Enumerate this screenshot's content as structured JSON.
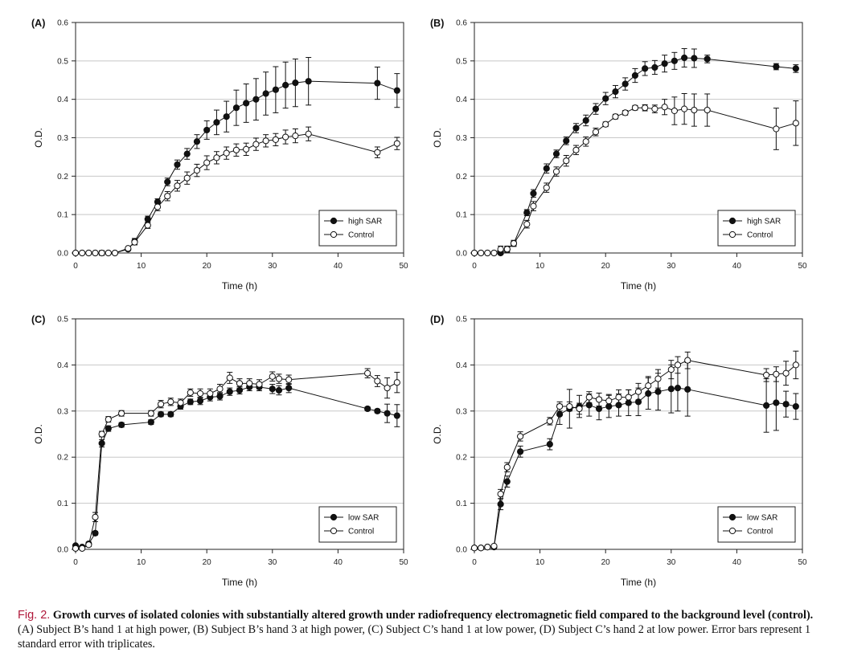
{
  "caption": {
    "label": "Fig. 2.",
    "title": "Growth curves of isolated colonies with substantially altered growth under radiofrequency electromagnetic field compared to the background level (control).",
    "text": "(A) Subject B’s hand 1 at high power, (B) Subject B’s hand 3 at high power, (C) Subject C’s hand 1 at low power, (D) Subject C’s hand 2 at low power. Error bars represent 1 standard error with triplicates."
  },
  "chart_data": [
    {
      "panel": "(A)",
      "type": "line",
      "xlabel": "Time (h)",
      "ylabel": "O.D.",
      "xlim": [
        0,
        50
      ],
      "ylim": [
        0,
        0.6
      ],
      "xticks": [
        0,
        10,
        20,
        30,
        40,
        50
      ],
      "yticks": [
        0.0,
        0.1,
        0.2,
        0.3,
        0.4,
        0.5,
        0.6
      ],
      "grid": "horizontal",
      "legend": "bottom-right",
      "series": [
        {
          "name": "high SAR",
          "marker": "filled-circle",
          "x": [
            0,
            1,
            2,
            3,
            4,
            5,
            6,
            8,
            9,
            11,
            12.5,
            14,
            15.5,
            17,
            18.5,
            20,
            21.5,
            23,
            24.5,
            26,
            27.5,
            29,
            30.5,
            32,
            33.5,
            35.5,
            46,
            49
          ],
          "y": [
            0,
            0,
            0,
            0,
            0,
            0,
            0,
            0.01,
            0.03,
            0.088,
            0.133,
            0.185,
            0.23,
            0.258,
            0.29,
            0.32,
            0.34,
            0.355,
            0.378,
            0.39,
            0.4,
            0.415,
            0.425,
            0.437,
            0.443,
            0.447,
            0.442,
            0.423
          ],
          "err": [
            0,
            0,
            0,
            0,
            0.006,
            0,
            0,
            0,
            0.008,
            0.008,
            0.008,
            0.01,
            0.012,
            0.014,
            0.018,
            0.024,
            0.032,
            0.04,
            0.046,
            0.05,
            0.054,
            0.056,
            0.06,
            0.06,
            0.062,
            0.062,
            0.042,
            0.044
          ]
        },
        {
          "name": "Control",
          "marker": "open-circle",
          "x": [
            0,
            1,
            2,
            3,
            4,
            5,
            6,
            8,
            9,
            11,
            12.5,
            14,
            15.5,
            17,
            18.5,
            20,
            21.5,
            23,
            24.5,
            26,
            27.5,
            29,
            30.5,
            32,
            33.5,
            35.5,
            46,
            49
          ],
          "y": [
            0,
            0,
            0,
            0,
            0,
            0,
            0,
            0.012,
            0.028,
            0.072,
            0.12,
            0.148,
            0.175,
            0.195,
            0.215,
            0.235,
            0.248,
            0.26,
            0.268,
            0.27,
            0.283,
            0.292,
            0.295,
            0.302,
            0.305,
            0.31,
            0.262,
            0.285
          ],
          "err": [
            0,
            0,
            0,
            0,
            0.006,
            0,
            0,
            0,
            0.007,
            0.008,
            0.01,
            0.012,
            0.014,
            0.016,
            0.016,
            0.018,
            0.016,
            0.016,
            0.016,
            0.016,
            0.016,
            0.016,
            0.016,
            0.018,
            0.018,
            0.018,
            0.014,
            0.016
          ]
        }
      ]
    },
    {
      "panel": "(B)",
      "type": "line",
      "xlabel": "Time (h)",
      "ylabel": "O.D.",
      "xlim": [
        0,
        50
      ],
      "ylim": [
        0,
        0.6
      ],
      "xticks": [
        0,
        10,
        20,
        30,
        40,
        50
      ],
      "yticks": [
        0.0,
        0.1,
        0.2,
        0.3,
        0.4,
        0.5,
        0.6
      ],
      "grid": "horizontal",
      "legend": "bottom-right",
      "series": [
        {
          "name": "high SAR",
          "marker": "filled-circle",
          "x": [
            0,
            1,
            2,
            3,
            4,
            5,
            6,
            8,
            9,
            11,
            12.5,
            14,
            15.5,
            17,
            18.5,
            20,
            21.5,
            23,
            24.5,
            26,
            27.5,
            29,
            30.5,
            32,
            33.5,
            35.5,
            46,
            49
          ],
          "y": [
            0,
            0,
            0,
            0,
            0,
            0.01,
            0.025,
            0.105,
            0.155,
            0.22,
            0.258,
            0.292,
            0.325,
            0.345,
            0.375,
            0.402,
            0.42,
            0.44,
            0.462,
            0.48,
            0.483,
            0.493,
            0.5,
            0.508,
            0.507,
            0.505,
            0.485,
            0.48
          ],
          "err": [
            0,
            0,
            0,
            0,
            0.004,
            0.006,
            0.006,
            0.008,
            0.01,
            0.012,
            0.01,
            0.01,
            0.012,
            0.014,
            0.014,
            0.016,
            0.016,
            0.016,
            0.018,
            0.018,
            0.018,
            0.022,
            0.022,
            0.024,
            0.024,
            0.01,
            0.008,
            0.01
          ]
        },
        {
          "name": "Control",
          "marker": "open-circle",
          "x": [
            0,
            1,
            2,
            3,
            4,
            5,
            6,
            8,
            9,
            11,
            12.5,
            14,
            15.5,
            17,
            18.5,
            20,
            21.5,
            23,
            24.5,
            26,
            27.5,
            29,
            30.5,
            32,
            33.5,
            35.5,
            46,
            49
          ],
          "y": [
            0,
            0,
            0,
            0,
            0.01,
            0.01,
            0.025,
            0.075,
            0.122,
            0.17,
            0.212,
            0.24,
            0.268,
            0.29,
            0.315,
            0.335,
            0.355,
            0.365,
            0.378,
            0.378,
            0.375,
            0.38,
            0.37,
            0.375,
            0.372,
            0.372,
            0.323,
            0.338
          ],
          "err": [
            0,
            0,
            0,
            0,
            0.008,
            0.008,
            0.008,
            0.01,
            0.012,
            0.012,
            0.012,
            0.014,
            0.012,
            0.012,
            0.01,
            0.006,
            0.006,
            0.006,
            0.006,
            0.008,
            0.01,
            0.02,
            0.036,
            0.04,
            0.042,
            0.042,
            0.054,
            0.058
          ]
        }
      ]
    },
    {
      "panel": "(C)",
      "type": "line",
      "xlabel": "Time (h)",
      "ylabel": "O.D.",
      "xlim": [
        0,
        50
      ],
      "ylim": [
        0,
        0.5
      ],
      "xticks": [
        0,
        10,
        20,
        30,
        40,
        50
      ],
      "yticks": [
        0.0,
        0.1,
        0.2,
        0.3,
        0.4,
        0.5
      ],
      "grid": "horizontal",
      "legend": "bottom-right",
      "series": [
        {
          "name": "low SAR",
          "marker": "filled-circle",
          "x": [
            0,
            1,
            2,
            3,
            4,
            5,
            7,
            11.5,
            13,
            14.5,
            16,
            17.5,
            19,
            20.5,
            22,
            23.5,
            25,
            26.5,
            28,
            30,
            31,
            32.5,
            44.5,
            46,
            47.5,
            49
          ],
          "y": [
            0.008,
            0.005,
            0.012,
            0.035,
            0.23,
            0.262,
            0.27,
            0.276,
            0.293,
            0.293,
            0.31,
            0.32,
            0.322,
            0.33,
            0.332,
            0.342,
            0.345,
            0.352,
            0.352,
            0.348,
            0.345,
            0.35,
            0.305,
            0.3,
            0.295,
            0.29
          ],
          "err": [
            0.003,
            0.003,
            0.004,
            0.004,
            0.008,
            0.006,
            0.005,
            0.005,
            0.005,
            0.005,
            0.006,
            0.006,
            0.008,
            0.008,
            0.008,
            0.008,
            0.008,
            0.008,
            0.008,
            0.01,
            0.01,
            0.01,
            0.004,
            0.004,
            0.02,
            0.024
          ]
        },
        {
          "name": "Control",
          "marker": "open-circle",
          "x": [
            0,
            1,
            2,
            3,
            4,
            5,
            7,
            11.5,
            13,
            14.5,
            16,
            17.5,
            19,
            20.5,
            22,
            23.5,
            25,
            26.5,
            28,
            30,
            31,
            32.5,
            44.5,
            46,
            47.5,
            49
          ],
          "y": [
            0.002,
            0.002,
            0.01,
            0.07,
            0.25,
            0.282,
            0.295,
            0.295,
            0.315,
            0.32,
            0.318,
            0.34,
            0.338,
            0.338,
            0.348,
            0.372,
            0.36,
            0.36,
            0.358,
            0.375,
            0.37,
            0.368,
            0.382,
            0.365,
            0.35,
            0.362
          ],
          "err": [
            0.002,
            0.002,
            0.004,
            0.01,
            0.006,
            0.006,
            0.006,
            0.006,
            0.008,
            0.008,
            0.008,
            0.008,
            0.01,
            0.01,
            0.01,
            0.012,
            0.01,
            0.01,
            0.01,
            0.01,
            0.01,
            0.01,
            0.01,
            0.012,
            0.022,
            0.022
          ]
        }
      ]
    },
    {
      "panel": "(D)",
      "type": "line",
      "xlabel": "Time (h)",
      "ylabel": "O.D.",
      "xlim": [
        0,
        50
      ],
      "ylim": [
        0,
        0.5
      ],
      "xticks": [
        0,
        10,
        20,
        30,
        40,
        50
      ],
      "yticks": [
        0.0,
        0.1,
        0.2,
        0.3,
        0.4,
        0.5
      ],
      "grid": "horizontal",
      "legend": "bottom-right",
      "series": [
        {
          "name": "low SAR",
          "marker": "filled-circle",
          "x": [
            0,
            1,
            2,
            3,
            4,
            5,
            7,
            11.5,
            13,
            14.5,
            16,
            17.5,
            19,
            20.5,
            22,
            23.5,
            25,
            26.5,
            28,
            30,
            31,
            32.5,
            44.5,
            46,
            47.5,
            49
          ],
          "y": [
            0.003,
            0.003,
            0.005,
            0.005,
            0.098,
            0.147,
            0.212,
            0.228,
            0.293,
            0.305,
            0.31,
            0.313,
            0.305,
            0.31,
            0.313,
            0.318,
            0.32,
            0.338,
            0.342,
            0.348,
            0.35,
            0.347,
            0.312,
            0.318,
            0.315,
            0.31
          ],
          "err": [
            0.002,
            0.002,
            0.003,
            0.003,
            0.012,
            0.012,
            0.012,
            0.012,
            0.022,
            0.042,
            0.024,
            0.024,
            0.024,
            0.024,
            0.024,
            0.028,
            0.03,
            0.034,
            0.04,
            0.052,
            0.05,
            0.058,
            0.058,
            0.06,
            0.028,
            0.028
          ]
        },
        {
          "name": "Control",
          "marker": "open-circle",
          "x": [
            0,
            1,
            2,
            3,
            4,
            5,
            7,
            11.5,
            13,
            14.5,
            16,
            17.5,
            19,
            20.5,
            22,
            23.5,
            25,
            26.5,
            28,
            30,
            31,
            32.5,
            44.5,
            46,
            47.5,
            49
          ],
          "y": [
            0.003,
            0.003,
            0.005,
            0.007,
            0.12,
            0.178,
            0.245,
            0.278,
            0.31,
            0.31,
            0.305,
            0.33,
            0.325,
            0.322,
            0.33,
            0.33,
            0.342,
            0.355,
            0.37,
            0.39,
            0.4,
            0.41,
            0.378,
            0.38,
            0.382,
            0.4
          ],
          "err": [
            0.002,
            0.002,
            0.003,
            0.003,
            0.01,
            0.01,
            0.01,
            0.008,
            0.01,
            0.01,
            0.012,
            0.012,
            0.014,
            0.014,
            0.016,
            0.016,
            0.018,
            0.02,
            0.02,
            0.02,
            0.018,
            0.018,
            0.014,
            0.016,
            0.026,
            0.03
          ]
        }
      ]
    }
  ]
}
